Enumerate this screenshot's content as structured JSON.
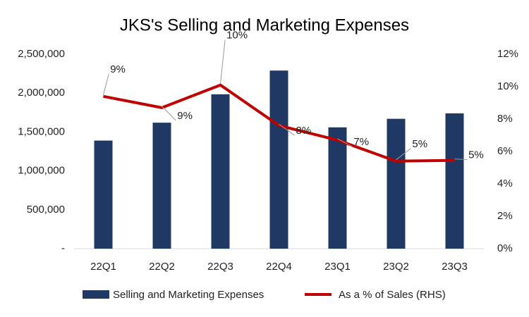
{
  "chart_data": {
    "type": "bar-line",
    "title": "JKS's Selling and Marketing Expenses",
    "categories": [
      "22Q1",
      "22Q2",
      "22Q3",
      "22Q4",
      "23Q1",
      "23Q2",
      "23Q3"
    ],
    "series": [
      {
        "name": "Selling and Marketing Expenses",
        "type": "bar",
        "color": "#1f3864",
        "values": [
          1390000,
          1620000,
          1985000,
          2290000,
          1560000,
          1670000,
          1740000
        ]
      },
      {
        "name": "As a % of Sales (RHS)",
        "type": "line",
        "axis": "y2",
        "color": "#c00000",
        "values": [
          9.4,
          8.7,
          10.1,
          7.6,
          6.7,
          5.4,
          5.45
        ],
        "value_labels": [
          "9%",
          "9%",
          "10%",
          "8%",
          "7%",
          "5%",
          "5%"
        ]
      }
    ],
    "ylim": [
      0,
      2500000
    ],
    "yticks": [
      {
        "value": 0,
        "label": "-"
      },
      {
        "value": 500000,
        "label": "500,000"
      },
      {
        "value": 1000000,
        "label": "1,000,000"
      },
      {
        "value": 1500000,
        "label": "1,500,000"
      },
      {
        "value": 2000000,
        "label": "2,000,000"
      },
      {
        "value": 2500000,
        "label": "2,500,000"
      }
    ],
    "y2lim": [
      0,
      12
    ],
    "y2ticks": [
      {
        "value": 0,
        "label": "0%"
      },
      {
        "value": 2,
        "label": "2%"
      },
      {
        "value": 4,
        "label": "4%"
      },
      {
        "value": 6,
        "label": "6%"
      },
      {
        "value": 8,
        "label": "8%"
      },
      {
        "value": 10,
        "label": "10%"
      },
      {
        "value": 12,
        "label": "12%"
      }
    ],
    "grid": false,
    "legend": "bottom"
  }
}
